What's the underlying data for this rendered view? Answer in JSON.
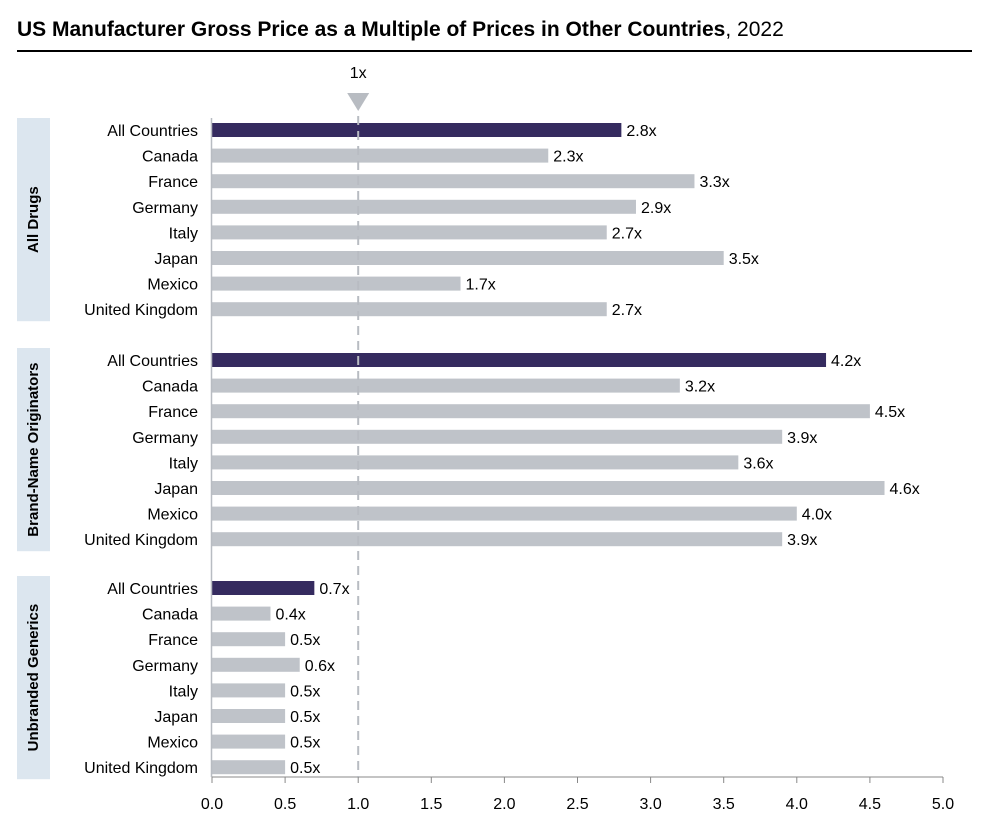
{
  "chart_data": {
    "type": "bar",
    "orientation": "horizontal",
    "title": "US Manufacturer Gross Price as a Multiple of Prices in Other Countries",
    "title_suffix": ", 2022",
    "xlim": [
      0,
      5
    ],
    "xticks": [
      "0.0",
      "0.5",
      "1.0",
      "1.5",
      "2.0",
      "2.5",
      "3.0",
      "3.5",
      "4.0",
      "4.5",
      "5.0"
    ],
    "reference_line": {
      "value": 1,
      "label": "1x"
    },
    "value_suffix": "x",
    "colors": {
      "highlight": "#352b5f",
      "bar": "#bfc3c9",
      "group_box": "#dce6ef",
      "reference": "#b8bcc2"
    },
    "groups": [
      {
        "name": "All Drugs",
        "categories": [
          "All Countries",
          "Canada",
          "France",
          "Germany",
          "Italy",
          "Japan",
          "Mexico",
          "United Kingdom"
        ],
        "values": [
          2.8,
          2.3,
          3.3,
          2.9,
          2.7,
          3.5,
          1.7,
          2.7
        ]
      },
      {
        "name": "Brand-Name Originators",
        "categories": [
          "All Countries",
          "Canada",
          "France",
          "Germany",
          "Italy",
          "Japan",
          "Mexico",
          "United Kingdom"
        ],
        "values": [
          4.2,
          3.2,
          4.5,
          3.9,
          3.6,
          4.6,
          4.0,
          3.9
        ]
      },
      {
        "name": "Unbranded Generics",
        "categories": [
          "All Countries",
          "Canada",
          "France",
          "Germany",
          "Italy",
          "Japan",
          "Mexico",
          "United Kingdom"
        ],
        "values": [
          0.7,
          0.4,
          0.5,
          0.6,
          0.5,
          0.5,
          0.5,
          0.5
        ]
      }
    ]
  }
}
